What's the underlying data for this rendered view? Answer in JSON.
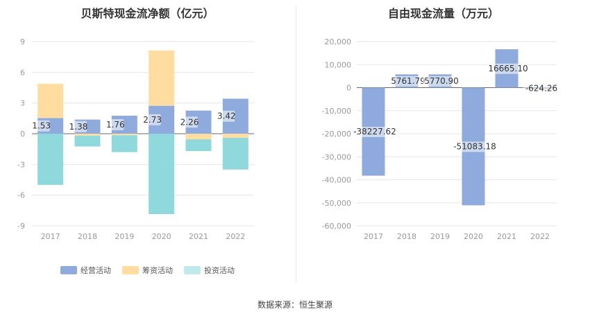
{
  "charts": {
    "left": {
      "title": "贝斯特现金流净额（亿元）"
    },
    "right": {
      "title": "自由现金流量（万元）"
    }
  },
  "legend": [
    {
      "label": "经营活动",
      "color": "#8faadc"
    },
    {
      "label": "筹资活动",
      "color": "#ffdca0"
    },
    {
      "label": "投资活动",
      "color": "#8fd9dc"
    }
  ],
  "source": "数据来源：恒生聚源",
  "chart_data": [
    {
      "type": "bar",
      "stacked": true,
      "title": "贝斯特现金流净额（亿元）",
      "categories": [
        "2017",
        "2018",
        "2019",
        "2020",
        "2021",
        "2022"
      ],
      "ylim": [
        -9,
        9
      ],
      "yticks": [
        -9,
        -6,
        -3,
        0,
        3,
        6,
        9
      ],
      "grid": true,
      "legend_position": "bottom",
      "series": [
        {
          "name": "经营活动",
          "color": "#8faadc",
          "values": [
            1.53,
            1.38,
            1.76,
            2.73,
            2.26,
            3.42
          ],
          "data_labels": [
            "1.53",
            "1.38",
            "1.76",
            "2.73",
            "2.26",
            "3.42"
          ]
        },
        {
          "name": "筹资活动",
          "color": "#ffdca0",
          "values": [
            3.35,
            -0.2,
            -0.15,
            5.4,
            -0.55,
            -0.4
          ]
        },
        {
          "name": "投资活动",
          "color": "#8fd9dc",
          "values": [
            -5.0,
            -1.05,
            -1.65,
            -7.85,
            -1.15,
            -3.1
          ]
        }
      ]
    },
    {
      "type": "bar",
      "title": "自由现金流量（万元）",
      "categories": [
        "2017",
        "2018",
        "2019",
        "2020",
        "2021",
        "2022"
      ],
      "ylim": [
        -60000,
        20000
      ],
      "yticks": [
        -60000,
        -50000,
        -40000,
        -30000,
        -20000,
        -10000,
        0,
        10000,
        20000
      ],
      "ytick_labels": [
        "-60,000",
        "-50,000",
        "-40,000",
        "-30,000",
        "-20,000",
        "-10,000",
        "0",
        "10,000",
        "20,000"
      ],
      "grid": true,
      "series": [
        {
          "color": "#8faadc",
          "values": [
            -38227.62,
            5761.79,
            5770.9,
            -51083.18,
            16665.1,
            -624.26
          ],
          "data_labels": [
            "-38227.62",
            "5761.79",
            "5770.90",
            "-51083.18",
            "16665.10",
            "-624.26"
          ]
        }
      ]
    }
  ]
}
